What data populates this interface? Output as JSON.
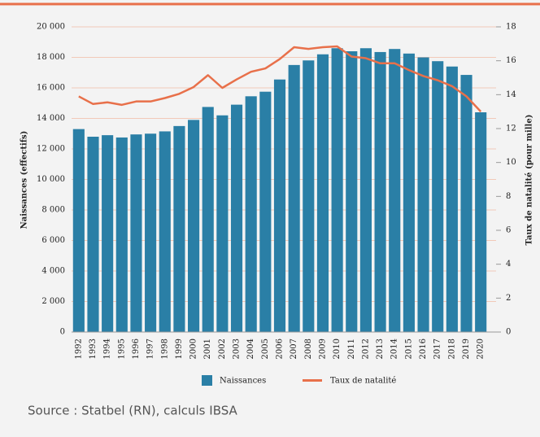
{
  "chart_data": {
    "type": "bar",
    "y_label": "Naissances (effectifs)",
    "y2_label": "Taux de natalité (pour mille)",
    "source": "Source : Statbel (RN), calculs IBSA",
    "categories": [
      "1992",
      "1993",
      "1994",
      "1995",
      "1996",
      "1997",
      "1998",
      "1999",
      "2000",
      "2001",
      "2002",
      "2003",
      "2004",
      "2005",
      "2006",
      "2007",
      "2008",
      "2009",
      "2010",
      "2011",
      "2012",
      "2013",
      "2014",
      "2015",
      "2016",
      "2017",
      "2018",
      "2019",
      "2020"
    ],
    "series": [
      {
        "name": "Naissances",
        "type": "bar",
        "color": "#2a7fa6",
        "values": [
          13300,
          12800,
          12900,
          12750,
          12950,
          13000,
          13150,
          13500,
          13900,
          14750,
          14200,
          14900,
          15450,
          15750,
          16550,
          17500,
          17800,
          18200,
          18600,
          18400,
          18600,
          18350,
          18550,
          18250,
          18000,
          17750,
          17400,
          16850,
          14400
        ]
      },
      {
        "name": "Taux de natalité",
        "type": "line",
        "axis": "y2",
        "color": "#e8704a",
        "values": [
          13.9,
          13.45,
          13.55,
          13.4,
          13.6,
          13.6,
          13.8,
          14.05,
          14.45,
          15.15,
          14.4,
          14.9,
          15.35,
          15.55,
          16.1,
          16.8,
          16.7,
          16.8,
          16.85,
          16.25,
          16.15,
          15.85,
          15.85,
          15.45,
          15.1,
          14.85,
          14.5,
          13.9,
          13.0
        ]
      }
    ],
    "ylim": [
      0,
      20000
    ],
    "yticks": [
      0,
      {
        "value": 2000,
        "label": "2 000"
      },
      {
        "value": 4000,
        "label": "4 000"
      },
      {
        "value": 6000,
        "label": "6 000"
      },
      {
        "value": 8000,
        "label": "8 000"
      },
      {
        "value": 10000,
        "label": "10 000"
      },
      {
        "value": 12000,
        "label": "12 000"
      },
      {
        "value": 14000,
        "label": "14 000"
      },
      {
        "value": 16000,
        "label": "16 000"
      },
      {
        "value": 18000,
        "label": "18 000"
      },
      {
        "value": 20000,
        "label": "20 000"
      }
    ],
    "y2lim": [
      0,
      18
    ],
    "y2ticks": [
      0,
      2,
      4,
      6,
      8,
      10,
      12,
      14,
      16,
      18
    ],
    "grid": true,
    "legend": "bottom"
  }
}
